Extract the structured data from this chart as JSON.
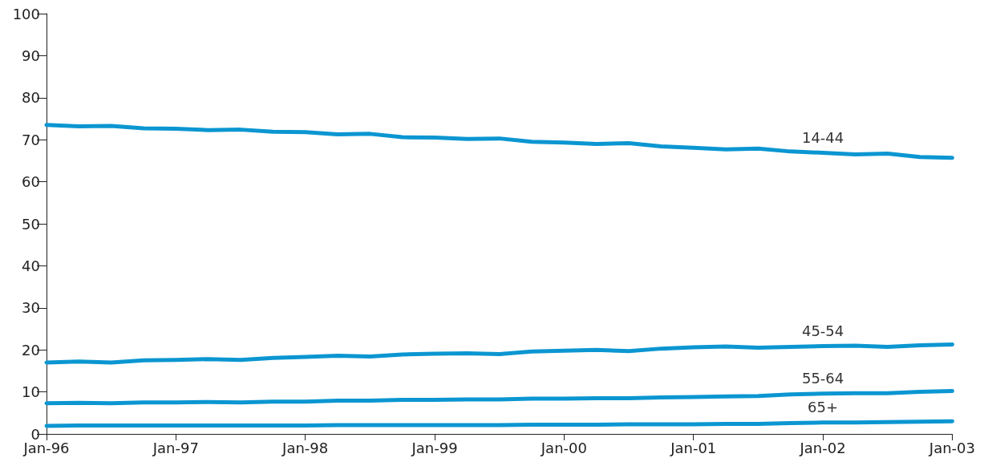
{
  "chart_data": {
    "type": "line",
    "categories": [
      "Jan-96",
      null,
      null,
      null,
      "Jan-97",
      null,
      null,
      null,
      "Jan-98",
      null,
      null,
      null,
      "Jan-99",
      null,
      null,
      null,
      "Jan-00",
      null,
      null,
      null,
      "Jan-01",
      null,
      null,
      null,
      "Jan-02",
      null,
      null,
      null,
      "Jan-03"
    ],
    "series": [
      {
        "name": "14-44",
        "color": "#0b96d1",
        "values": [
          73.5,
          73.2,
          73.3,
          72.7,
          72.6,
          72.3,
          72.4,
          71.9,
          71.8,
          71.3,
          71.4,
          70.6,
          70.5,
          70.2,
          70.3,
          69.5,
          69.3,
          69.0,
          69.2,
          68.4,
          68.1,
          67.7,
          67.9,
          67.2,
          66.9,
          66.5,
          66.7,
          65.9,
          65.7
        ]
      },
      {
        "name": "45-54",
        "color": "#0b96d1",
        "values": [
          17.0,
          17.2,
          17.0,
          17.5,
          17.6,
          17.8,
          17.6,
          18.1,
          18.3,
          18.6,
          18.4,
          18.9,
          19.1,
          19.2,
          19.0,
          19.6,
          19.8,
          20.0,
          19.7,
          20.3,
          20.6,
          20.8,
          20.5,
          20.7,
          20.9,
          21.0,
          20.7,
          21.1,
          21.3
        ]
      },
      {
        "name": "55-64",
        "color": "#0b96d1",
        "values": [
          7.3,
          7.4,
          7.3,
          7.5,
          7.5,
          7.6,
          7.5,
          7.7,
          7.7,
          7.9,
          7.9,
          8.1,
          8.1,
          8.2,
          8.2,
          8.4,
          8.4,
          8.5,
          8.5,
          8.7,
          8.8,
          8.9,
          9.0,
          9.4,
          9.6,
          9.7,
          9.7,
          10.0,
          10.2
        ]
      },
      {
        "name": "65+",
        "color": "#0b96d1",
        "values": [
          1.9,
          2.0,
          2.0,
          2.0,
          2.0,
          2.0,
          2.0,
          2.0,
          2.0,
          2.1,
          2.1,
          2.1,
          2.1,
          2.1,
          2.1,
          2.2,
          2.2,
          2.2,
          2.3,
          2.3,
          2.3,
          2.4,
          2.4,
          2.6,
          2.7,
          2.7,
          2.8,
          2.9,
          3.0
        ]
      }
    ],
    "ylim": [
      0,
      100
    ],
    "yticks": [
      0,
      10,
      20,
      30,
      40,
      50,
      60,
      70,
      80,
      90,
      100
    ],
    "grid": false,
    "legend": false,
    "marker": "none",
    "line_style": "solid"
  }
}
